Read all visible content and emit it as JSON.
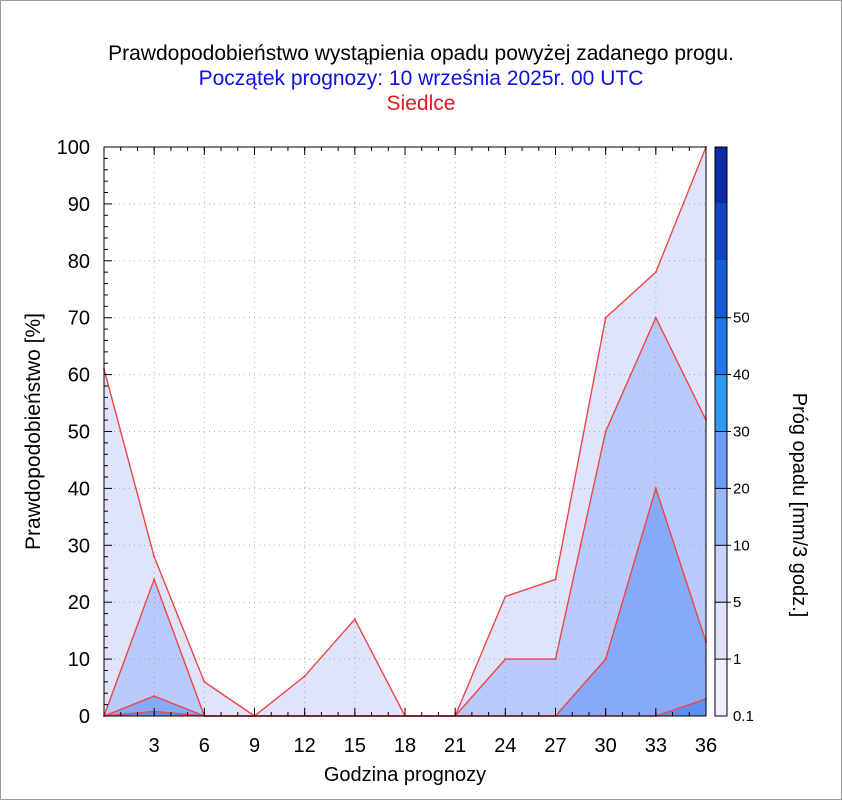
{
  "header": {
    "title": "Prawdopodobieństwo wystąpienia opadu powyżej zadanego progu.",
    "subtitle": "Początek prognozy: 10 września 2025r. 00 UTC",
    "location": "Siedlce"
  },
  "chart_data": {
    "type": "area",
    "xlabel": "Godzina prognozy",
    "ylabel": "Prawdopodobieństwo [%]",
    "x": [
      0,
      3,
      6,
      9,
      12,
      15,
      18,
      21,
      24,
      27,
      30,
      33,
      36
    ],
    "x_ticks": [
      "3",
      "6",
      "9",
      "12",
      "15",
      "18",
      "21",
      "24",
      "27",
      "30",
      "33",
      "36"
    ],
    "ylim": [
      0,
      100
    ],
    "y_ticks": [
      "0",
      "10",
      "20",
      "30",
      "40",
      "50",
      "60",
      "70",
      "80",
      "90",
      "100"
    ],
    "grid": true,
    "series": [
      {
        "name": "0.1",
        "color": "#dfe4fb",
        "values": [
          61,
          28,
          6,
          0,
          7,
          17,
          0,
          0,
          21,
          24,
          70,
          78,
          100
        ]
      },
      {
        "name": "1",
        "color": "#b7caf9",
        "values": [
          0,
          24,
          0,
          0,
          0,
          0,
          0,
          0,
          10,
          10,
          50,
          70,
          52
        ]
      },
      {
        "name": "5",
        "color": "#86aaf9",
        "values": [
          0,
          3.5,
          0,
          0,
          0,
          0,
          0,
          0,
          0,
          0,
          10,
          40,
          13
        ]
      },
      {
        "name": "10",
        "color": "#5c8ff4",
        "values": [
          0,
          0.8,
          0,
          0,
          0,
          0,
          0,
          0,
          0,
          0,
          0,
          0,
          3
        ]
      }
    ],
    "colorbar": {
      "label": "Próg opadu [mm/3 godz.]",
      "ticks": [
        "0.1",
        "1",
        "5",
        "10",
        "20",
        "30",
        "40",
        "50"
      ],
      "colors": [
        "#eef1fd",
        "#dfe4fb",
        "#c6d4fa",
        "#9ab8f8",
        "#6a9cf3",
        "#2c9af0",
        "#2276e6",
        "#1a5cd6",
        "#1244c0",
        "#0a2aa6"
      ]
    },
    "outline_color": "#f04545"
  }
}
